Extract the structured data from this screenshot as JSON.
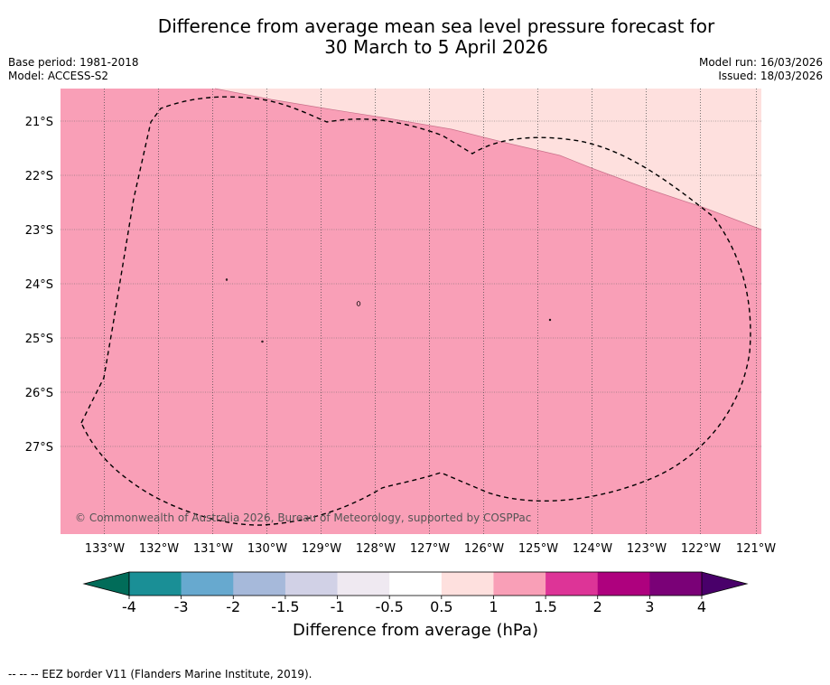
{
  "title_line1": "Difference from average mean sea level pressure forecast for",
  "title_line2": "30 March to 5 April 2026",
  "base_period": "Base period: 1981-2018",
  "model": "Model: ACCESS-S2",
  "model_run": "Model run: 16/03/2026",
  "issued": "Issued: 18/03/2026",
  "copyright": "© Commonwealth of Australia 2026, Bureau of Meteorology, supported by COSPPac",
  "lat_labels": [
    "21°S",
    "22°S",
    "23°S",
    "24°S",
    "25°S",
    "26°S",
    "27°S"
  ],
  "lon_labels": [
    "133°W",
    "132°W",
    "131°W",
    "130°W",
    "129°W",
    "128°W",
    "127°W",
    "126°W",
    "125°W",
    "124°W",
    "123°W",
    "122°W",
    "121°W"
  ],
  "colorbar": {
    "title": "Difference from average (hPa)",
    "tick_labels": [
      "-4",
      "-3",
      "-2",
      "-1.5",
      "-1",
      "-0.5",
      "0.5",
      "1",
      "1.5",
      "2",
      "3",
      "4"
    ],
    "colors": [
      "#1a8f96",
      "#67a9cf",
      "#a6b9da",
      "#d1d1e6",
      "#efe9f1",
      "#ffffff",
      "#fee0de",
      "#f99fb7",
      "#dd3497",
      "#ae017e",
      "#7a0177"
    ],
    "under_color": "#016c59",
    "over_color": "#49006a"
  },
  "map_colors": {
    "main_fill": "#f99fb7",
    "light_fill": "#fee0de"
  },
  "footer": "--  --  -- EEZ border V11 (Flanders Marine Institute, 2019)."
}
